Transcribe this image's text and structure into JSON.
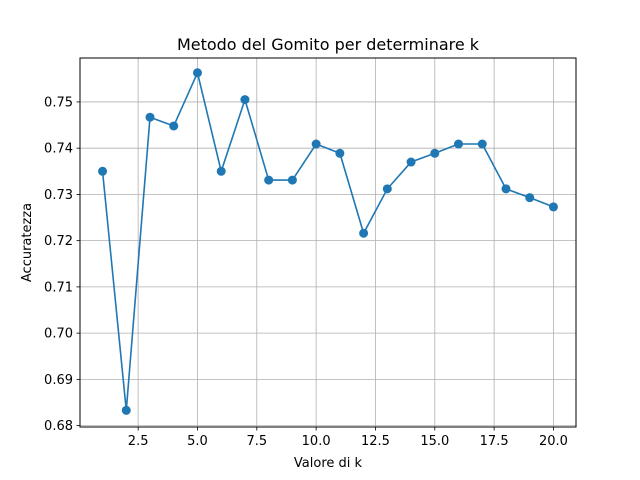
{
  "chart_data": {
    "type": "line",
    "title": "Metodo del Gomito per determinare k",
    "xlabel": "Valore di k",
    "ylabel": "Accuratezza",
    "xlim": [
      0.05,
      20.95
    ],
    "ylim": [
      0.6797,
      0.7595
    ],
    "xticks": [
      2.5,
      5.0,
      7.5,
      10.0,
      12.5,
      15.0,
      17.5,
      20.0
    ],
    "xtick_labels": [
      "2.5",
      "5.0",
      "7.5",
      "10.0",
      "12.5",
      "15.0",
      "17.5",
      "20.0"
    ],
    "yticks": [
      0.68,
      0.69,
      0.7,
      0.71,
      0.72,
      0.73,
      0.74,
      0.75
    ],
    "ytick_labels": [
      "0.68",
      "0.69",
      "0.70",
      "0.71",
      "0.72",
      "0.73",
      "0.74",
      "0.75"
    ],
    "grid": true,
    "markers": "circle",
    "series": [
      {
        "color": "#1f77b4",
        "x": [
          1,
          2,
          3,
          4,
          5,
          6,
          7,
          8,
          9,
          10,
          11,
          12,
          13,
          14,
          15,
          16,
          17,
          18,
          19,
          20
        ],
        "y": [
          0.735,
          0.6833,
          0.7467,
          0.7448,
          0.7563,
          0.735,
          0.7505,
          0.7331,
          0.7331,
          0.7409,
          0.7389,
          0.7216,
          0.7312,
          0.737,
          0.7389,
          0.7409,
          0.7409,
          0.7312,
          0.7293,
          0.7273
        ]
      }
    ]
  }
}
